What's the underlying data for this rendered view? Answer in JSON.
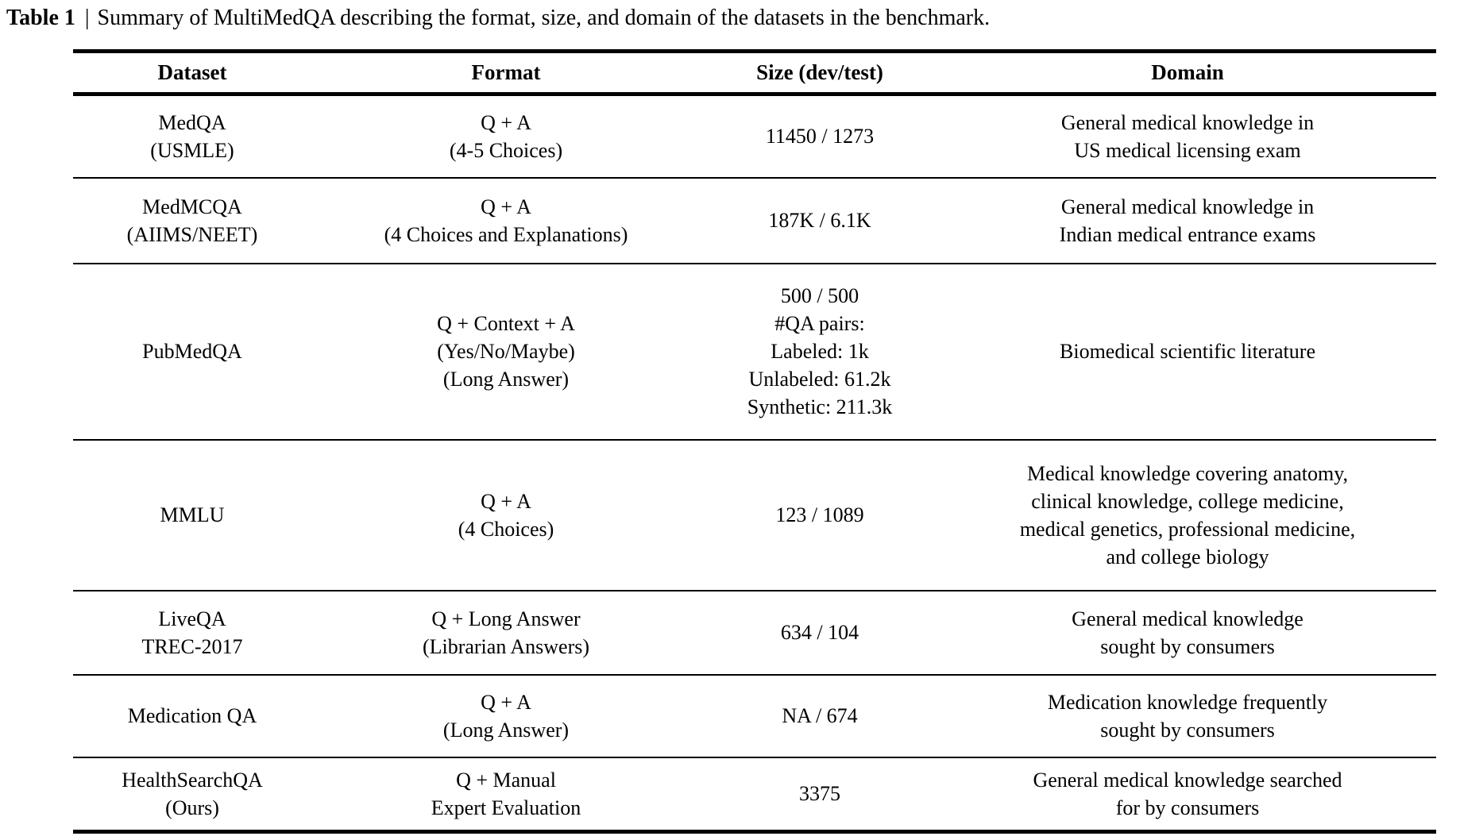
{
  "caption": {
    "label": "Table 1",
    "separator": "|",
    "text": "Summary of MultiMedQA describing the format, size, and domain of the datasets in the benchmark."
  },
  "table": {
    "headers": [
      "Dataset",
      "Format",
      "Size (dev/test)",
      "Domain"
    ],
    "rows": [
      {
        "dataset": [
          "MedQA",
          "(USMLE)"
        ],
        "format": [
          "Q + A",
          "(4-5 Choices)"
        ],
        "size": [
          "11450 / 1273"
        ],
        "domain": [
          "General medical knowledge in",
          "US medical licensing exam"
        ]
      },
      {
        "dataset": [
          "MedMCQA",
          "(AIIMS/NEET)"
        ],
        "format": [
          "Q + A",
          "(4 Choices and Explanations)"
        ],
        "size": [
          "187K / 6.1K"
        ],
        "domain": [
          "General medical knowledge in",
          "Indian medical entrance exams"
        ]
      },
      {
        "dataset": [
          "PubMedQA"
        ],
        "format": [
          "Q + Context + A",
          "(Yes/No/Maybe)",
          "(Long Answer)"
        ],
        "size": [
          "500 / 500",
          "#QA pairs:",
          "Labeled: 1k",
          "Unlabeled: 61.2k",
          "Synthetic: 211.3k"
        ],
        "domain": [
          "Biomedical scientific literature"
        ]
      },
      {
        "dataset": [
          "MMLU"
        ],
        "format": [
          "Q + A",
          "(4 Choices)"
        ],
        "size": [
          "123 / 1089"
        ],
        "domain": [
          "Medical knowledge covering anatomy,",
          "clinical knowledge, college medicine,",
          "medical genetics, professional medicine,",
          "and college biology"
        ]
      },
      {
        "dataset": [
          "LiveQA",
          "TREC-2017"
        ],
        "format": [
          "Q + Long Answer",
          "(Librarian Answers)"
        ],
        "size": [
          "634 / 104"
        ],
        "domain": [
          "General medical knowledge",
          "sought by consumers"
        ]
      },
      {
        "dataset": [
          "Medication QA"
        ],
        "format": [
          "Q + A",
          "(Long Answer)"
        ],
        "size": [
          "NA / 674"
        ],
        "domain": [
          "Medication knowledge frequently",
          "sought by consumers"
        ]
      },
      {
        "dataset": [
          "HealthSearchQA",
          "(Ours)"
        ],
        "format": [
          "Q + Manual",
          "Expert Evaluation"
        ],
        "size": [
          "3375"
        ],
        "domain": [
          "General medical knowledge searched",
          "for by consumers"
        ]
      }
    ]
  }
}
